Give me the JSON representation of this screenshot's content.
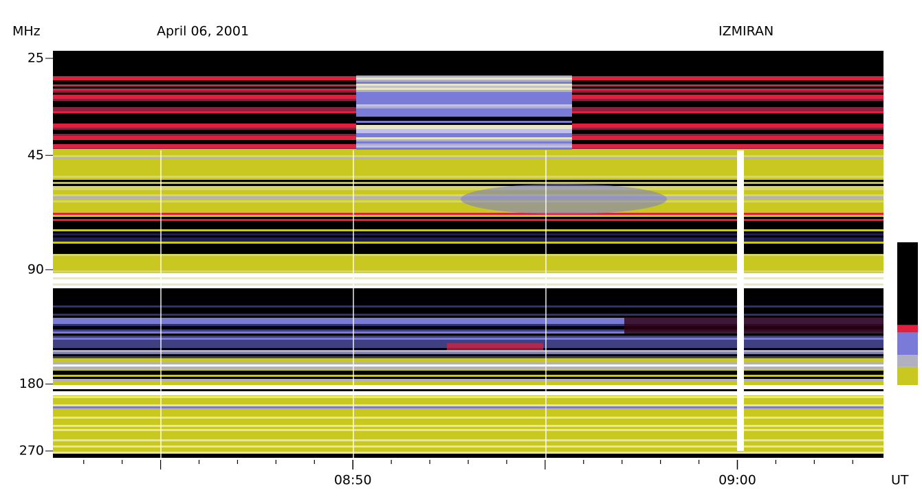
{
  "chart_data": {
    "type": "spectrogram",
    "title": "April 06, 2001",
    "station": "IZMIRAN",
    "ylabel": "MHz",
    "xlabel": "UT",
    "log_y": true,
    "ylim": [
      25,
      270
    ],
    "yticks": [
      25,
      45,
      90,
      180,
      270
    ],
    "xlim": [
      42.2,
      63.8
    ],
    "xticks": [
      {
        "value": 50,
        "label": "08:50"
      },
      {
        "value": 60,
        "label": "09:00"
      }
    ],
    "xminorticks": [
      43,
      44,
      45,
      46,
      47,
      48,
      49,
      51,
      52,
      53,
      54,
      55,
      56,
      57,
      58,
      59,
      61,
      62,
      63
    ],
    "colormap": [
      "#000000",
      "#e0203c",
      "#7a7ad8",
      "#b0b0c0",
      "#c8c820",
      "#ffffff"
    ]
  }
}
